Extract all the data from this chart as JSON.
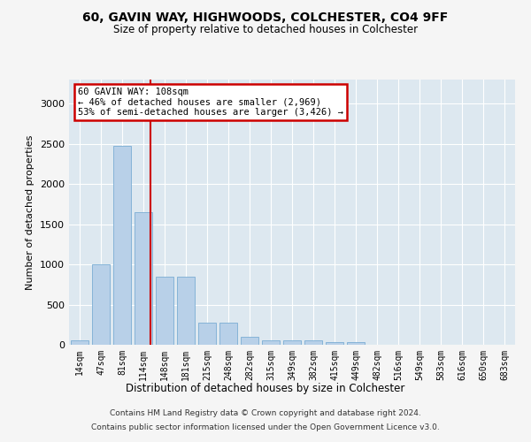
{
  "title": "60, GAVIN WAY, HIGHWOODS, COLCHESTER, CO4 9FF",
  "subtitle": "Size of property relative to detached houses in Colchester",
  "xlabel": "Distribution of detached houses by size in Colchester",
  "ylabel": "Number of detached properties",
  "bar_color": "#b8d0e8",
  "bar_edge_color": "#7aadd4",
  "bins": [
    "14sqm",
    "47sqm",
    "81sqm",
    "114sqm",
    "148sqm",
    "181sqm",
    "215sqm",
    "248sqm",
    "282sqm",
    "315sqm",
    "349sqm",
    "382sqm",
    "415sqm",
    "449sqm",
    "482sqm",
    "516sqm",
    "549sqm",
    "583sqm",
    "616sqm",
    "650sqm",
    "683sqm"
  ],
  "values": [
    50,
    1000,
    2480,
    1650,
    850,
    850,
    270,
    270,
    100,
    55,
    50,
    50,
    35,
    35,
    0,
    0,
    0,
    0,
    0,
    0,
    0
  ],
  "ylim": [
    0,
    3300
  ],
  "yticks": [
    0,
    500,
    1000,
    1500,
    2000,
    2500,
    3000
  ],
  "red_line_index": 3,
  "annotation_title": "60 GAVIN WAY: 108sqm",
  "annotation_line1": "← 46% of detached houses are smaller (2,969)",
  "annotation_line2": "53% of semi-detached houses are larger (3,426) →",
  "annotation_box_color": "#ffffff",
  "annotation_box_edge": "#cc0000",
  "red_line_color": "#cc0000",
  "background_color": "#dde8f0",
  "plot_bg_color": "#dde8f0",
  "grid_color": "#ffffff",
  "fig_bg_color": "#f5f5f5",
  "footer_line1": "Contains HM Land Registry data © Crown copyright and database right 2024.",
  "footer_line2": "Contains public sector information licensed under the Open Government Licence v3.0."
}
